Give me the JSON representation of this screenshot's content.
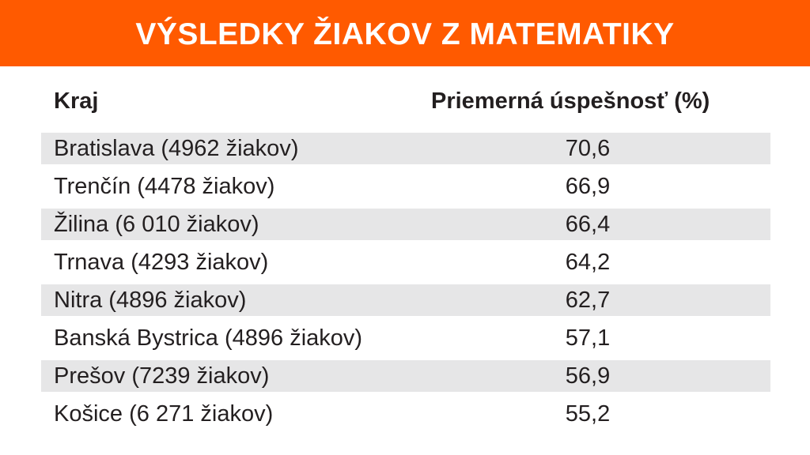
{
  "colors": {
    "banner": "#ff5a00",
    "banner_text": "#ffffff",
    "row_shade": "#e6e6e7",
    "text": "#231f20"
  },
  "title": "VÝSLEDKY ŽIAKOV Z MATEMATIKY",
  "header": {
    "region": "Kraj",
    "value": "Priemerná úspešnosť  (%)"
  },
  "chart_data": {
    "type": "table",
    "title": "VÝSLEDKY ŽIAKOV Z MATEMATIKY",
    "columns": [
      "Kraj",
      "Priemerná úspešnosť  (%)"
    ],
    "rows": [
      {
        "region": "Bratislava (4962 žiakov)",
        "value": "70,6"
      },
      {
        "region": "Trenčín (4478 žiakov)",
        "value": "66,9"
      },
      {
        "region": "Žilina (6 010 žiakov)",
        "value": "66,4"
      },
      {
        "region": "Trnava (4293 žiakov)",
        "value": "64,2"
      },
      {
        "region": "Nitra (4896 žiakov)",
        "value": "62,7"
      },
      {
        "region": "Banská Bystrica (4896 žiakov)",
        "value": "57,1"
      },
      {
        "region": "Prešov (7239 žiakov)",
        "value": "56,9"
      },
      {
        "region": "Košice (6 271 žiakov)",
        "value": "55,2"
      }
    ]
  }
}
